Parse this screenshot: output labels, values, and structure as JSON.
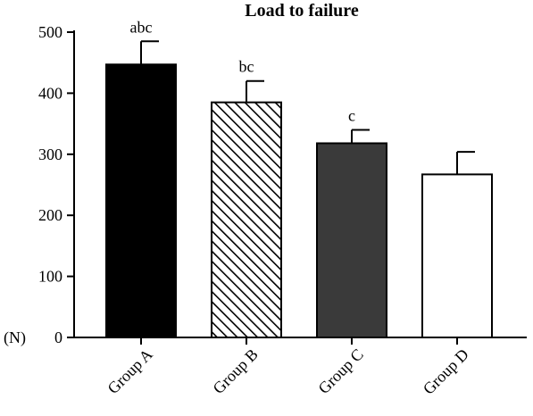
{
  "chart_data": {
    "type": "bar",
    "title": "Load to failure",
    "ylabel": "(N)",
    "ylim": [
      0,
      500
    ],
    "yticks": [
      0,
      100,
      200,
      300,
      400,
      500
    ],
    "categories": [
      "Group A",
      "Group B",
      "Group C",
      "Group D"
    ],
    "values": [
      447,
      385,
      318,
      267
    ],
    "errors": [
      38,
      35,
      22,
      37
    ],
    "significance": [
      "abc",
      "bc",
      "c",
      ""
    ],
    "fills": [
      "solid-black",
      "diagonal-hatch",
      "solid-dark-gray",
      "white"
    ],
    "colors": {
      "black": "#000000",
      "dark_gray": "#3a3a3a",
      "white": "#ffffff"
    },
    "grid": false,
    "legend": "none"
  }
}
